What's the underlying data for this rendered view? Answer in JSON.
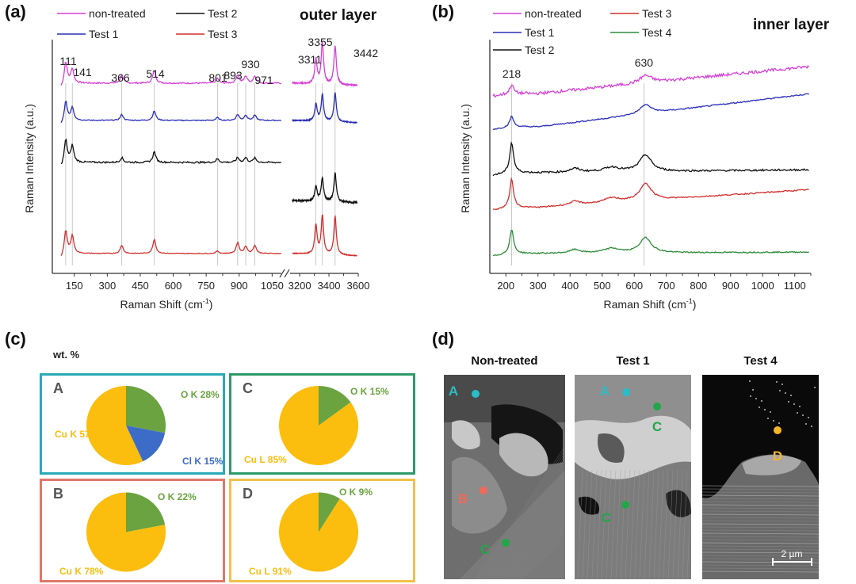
{
  "panels": {
    "a": {
      "label": "(a)"
    },
    "b": {
      "label": "(b)"
    },
    "c": {
      "label": "(c)",
      "subtitle": "wt. %"
    },
    "d": {
      "label": "(d)"
    }
  },
  "colors": {
    "non_treated": "#d63fd6",
    "test1": "#2b2fb8",
    "test2": "#111111",
    "test3": "#d0302f",
    "test4": "#2e8b3a",
    "pie_cu": "#fbbd0e",
    "pie_o": "#6aa340",
    "pie_cl": "#3d6cc8",
    "box_A": "#29aab8",
    "box_B": "#e0766b",
    "box_C": "#2e9a6a",
    "box_D": "#f1c14a"
  },
  "chart_data": [
    {
      "id": "a",
      "type": "line",
      "title": "outer layer",
      "xlabel": "Raman Shift (cm-1)",
      "xlabel_main": "Raman Shift (cm",
      "xlabel_sup": "-1",
      "xlabel_end": ")",
      "ylabel": "Raman Intensity (a.u.)",
      "x_segments": [
        {
          "range": [
            50,
            1110
          ],
          "ticks": [
            "150",
            "300",
            "450",
            "600",
            "750",
            "900",
            "1050"
          ],
          "tick_values": [
            150,
            300,
            450,
            600,
            750,
            900,
            1050
          ]
        },
        {
          "range": [
            3140,
            3600
          ],
          "ticks": [
            "3200",
            "3400",
            "3600"
          ],
          "tick_values": [
            3200,
            3400,
            3600
          ]
        }
      ],
      "axis_break": true,
      "legend": [
        "non-treated",
        "Test 1",
        "Test 2",
        "Test 3"
      ],
      "legend_placement": "top-left",
      "peak_labels": [
        "111",
        "141",
        "366",
        "514",
        "801",
        "893",
        "930",
        "971",
        "3311",
        "3355",
        "3442"
      ],
      "peak_positions": [
        111,
        141,
        366,
        514,
        801,
        893,
        930,
        971,
        3311,
        3355,
        3442
      ],
      "series": [
        {
          "name": "non-treated",
          "color_key": "non_treated",
          "offset": 3,
          "peaks_low": [
            [
              111,
              0.9
            ],
            [
              141,
              0.6
            ],
            [
              366,
              0.35
            ],
            [
              514,
              0.55
            ],
            [
              801,
              0.2
            ],
            [
              893,
              0.35
            ],
            [
              930,
              0.3
            ],
            [
              971,
              0.3
            ]
          ],
          "peaks_high": [
            [
              3311,
              1.0
            ],
            [
              3355,
              1.7
            ],
            [
              3442,
              1.6
            ]
          ],
          "noise": 0.03
        },
        {
          "name": "Test 1",
          "color_key": "test1",
          "offset": 2,
          "peaks_low": [
            [
              111,
              0.8
            ],
            [
              141,
              0.55
            ],
            [
              366,
              0.25
            ],
            [
              514,
              0.4
            ],
            [
              801,
              0.12
            ],
            [
              893,
              0.25
            ],
            [
              930,
              0.22
            ],
            [
              971,
              0.22
            ]
          ],
          "peaks_high": [
            [
              3311,
              0.7
            ],
            [
              3355,
              1.1
            ],
            [
              3442,
              1.2
            ]
          ],
          "noise": 0.02
        },
        {
          "name": "Test 2",
          "color_key": "test2",
          "offset": 1,
          "peaks_low": [
            [
              111,
              0.95
            ],
            [
              141,
              0.7
            ],
            [
              366,
              0.2
            ],
            [
              514,
              0.45
            ],
            [
              801,
              0.15
            ],
            [
              893,
              0.2
            ],
            [
              930,
              0.2
            ],
            [
              971,
              0.18
            ]
          ],
          "peaks_high": [
            [
              3311,
              0.6
            ],
            [
              3355,
              0.95
            ],
            [
              3442,
              1.2
            ]
          ],
          "noise": 0.035
        },
        {
          "name": "Test 3",
          "color_key": "test3",
          "offset": 0,
          "peaks_low": [
            [
              111,
              0.95
            ],
            [
              141,
              0.75
            ],
            [
              366,
              0.35
            ],
            [
              514,
              0.6
            ],
            [
              801,
              0.1
            ],
            [
              893,
              0.45
            ],
            [
              930,
              0.3
            ],
            [
              971,
              0.35
            ]
          ],
          "peaks_high": [
            [
              3311,
              1.2
            ],
            [
              3355,
              1.6
            ],
            [
              3442,
              1.6
            ]
          ],
          "noise": 0.015
        }
      ]
    },
    {
      "id": "b",
      "type": "line",
      "title": "inner layer",
      "xlabel": "Raman Shift (cm-1)",
      "xlabel_main": "Raman Shift (cm",
      "xlabel_sup": "-1",
      "xlabel_end": ")",
      "ylabel": "Raman Intensity (a.u.)",
      "xlim": [
        150,
        1150
      ],
      "ticks": [
        "200",
        "300",
        "400",
        "500",
        "600",
        "700",
        "800",
        "900",
        "1000",
        "1100"
      ],
      "tick_values": [
        200,
        300,
        400,
        500,
        600,
        700,
        800,
        900,
        1000,
        1100
      ],
      "legend": [
        "non-treated",
        "Test 1",
        "Test 2",
        "Test 3",
        "Test 4"
      ],
      "legend_placement": "top-left",
      "peak_labels": [
        "218",
        "630"
      ],
      "peak_positions": [
        218,
        630
      ],
      "series": [
        {
          "name": "non-treated",
          "color_key": "non_treated",
          "offset": 4,
          "p218": 0.3,
          "p630": 0.25,
          "slope": 0.9,
          "noise": 0.05
        },
        {
          "name": "Test 1",
          "color_key": "test1",
          "offset": 3,
          "p218": 0.35,
          "p630": 0.3,
          "slope": 1.1,
          "noise": 0.02
        },
        {
          "name": "Test 2",
          "color_key": "test2",
          "offset": 2,
          "p218": 1.0,
          "p630": 0.55,
          "slope": 0.1,
          "noise": 0.03
        },
        {
          "name": "Test 3",
          "color_key": "test3",
          "offset": 1,
          "p218": 0.95,
          "p630": 0.55,
          "slope": 0.6,
          "noise": 0.02
        },
        {
          "name": "Test 4",
          "color_key": "test4",
          "offset": 0,
          "p218": 0.8,
          "p630": 0.5,
          "slope": 0.05,
          "noise": 0.02
        }
      ]
    },
    {
      "id": "c",
      "type": "pie",
      "title": "wt. %",
      "pies": [
        {
          "name": "A",
          "border_key": "box_A",
          "slices": [
            {
              "label": "O K 28%",
              "element": "O K",
              "value": 28,
              "color_key": "pie_o"
            },
            {
              "label": "Cl K 15%",
              "element": "Cl K",
              "value": 15,
              "color_key": "pie_cl"
            },
            {
              "label": "Cu K 57%",
              "element": "Cu K",
              "value": 57,
              "color_key": "pie_cu"
            }
          ]
        },
        {
          "name": "C",
          "border_key": "box_C",
          "slices": [
            {
              "label": "O K 15%",
              "element": "O K",
              "value": 15,
              "color_key": "pie_o"
            },
            {
              "label": "Cu L 85%",
              "element": "Cu L",
              "value": 85,
              "color_key": "pie_cu"
            }
          ]
        },
        {
          "name": "B",
          "border_key": "box_B",
          "slices": [
            {
              "label": "O K 22%",
              "element": "O K",
              "value": 22,
              "color_key": "pie_o"
            },
            {
              "label": "Cu K 78%",
              "element": "Cu K",
              "value": 78,
              "color_key": "pie_cu"
            }
          ]
        },
        {
          "name": "D",
          "border_key": "box_D",
          "slices": [
            {
              "label": "O K 9%",
              "element": "O K",
              "value": 9,
              "color_key": "pie_o"
            },
            {
              "label": "Cu L 91%",
              "element": "Cu L",
              "value": 91,
              "color_key": "pie_cu"
            }
          ]
        }
      ]
    }
  ],
  "sem": {
    "images": [
      {
        "title": "Non-treated",
        "markers": [
          {
            "label": "A",
            "color": "#2bbcc8"
          },
          {
            "label": "B",
            "color": "#ef6a5a"
          },
          {
            "label": "C",
            "color": "#22a64a"
          }
        ]
      },
      {
        "title": "Test 1",
        "markers": [
          {
            "label": "A",
            "color": "#2bbcc8"
          },
          {
            "label": "C",
            "color": "#22a64a"
          },
          {
            "label": "C",
            "color": "#22a64a"
          }
        ]
      },
      {
        "title": "Test 4",
        "markers": [
          {
            "label": "D",
            "color": "#f5b52a"
          }
        ]
      }
    ],
    "scale_bar": "2 µm"
  }
}
